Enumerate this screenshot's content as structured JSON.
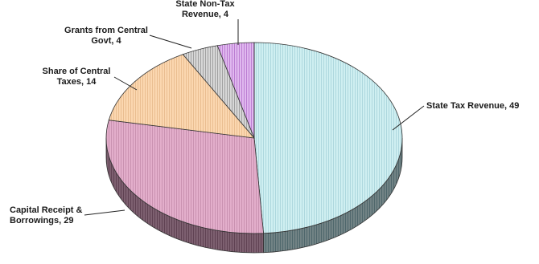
{
  "chart_data": {
    "type": "pie",
    "title": "",
    "legend": "none",
    "slices": [
      {
        "label_lines": [
          "State Tax Revenue, 49"
        ],
        "name": "State Tax Revenue",
        "value": 49,
        "color": "#cfeff1",
        "hatch": "#7fb6c2"
      },
      {
        "label_lines": [
          "Capital Receipt &",
          "Borrowings, 29"
        ],
        "name": "Capital Receipt & Borrowings",
        "value": 29,
        "color": "#e3aecb",
        "hatch": "#a86a8c"
      },
      {
        "label_lines": [
          "Share of Central",
          "Taxes, 14"
        ],
        "name": "Share of Central Taxes",
        "value": 14,
        "color": "#fbd7b0",
        "hatch": "#d29a66"
      },
      {
        "label_lines": [
          "Grants from Central",
          "Govt, 4"
        ],
        "name": "Grants from Central Govt",
        "value": 4,
        "color": "#d7d7d7",
        "hatch": "#555555"
      },
      {
        "label_lines": [
          "State Non-Tax",
          "Revenue, 4"
        ],
        "name": "State Non-Tax Revenue",
        "value": 4,
        "color": "#e0b8ef",
        "hatch": "#8a2aa8"
      }
    ]
  }
}
